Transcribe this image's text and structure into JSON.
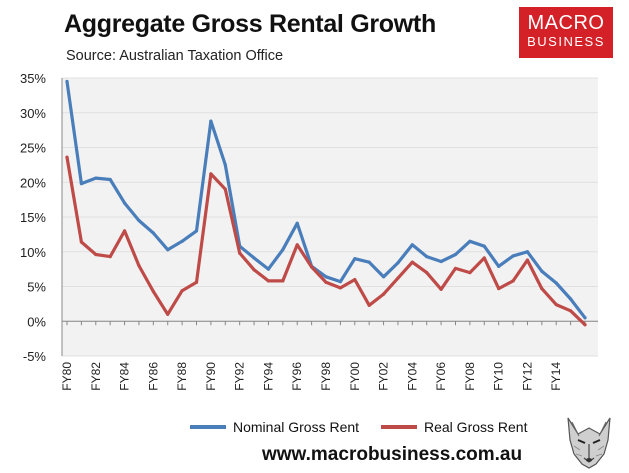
{
  "header": {
    "title": "Aggregate Gross Rental Growth",
    "subtitle": "Source: Australian Taxation Office"
  },
  "logo": {
    "line1": "MACRO",
    "line2": "BUSINESS",
    "color": "#d42027"
  },
  "footer": {
    "url": "www.macrobusiness.com.au",
    "mascot_icon": "wolf-icon"
  },
  "chart_data": {
    "type": "line",
    "title": "Aggregate Gross Rental Growth",
    "xlabel": "",
    "ylabel": "",
    "ylim": [
      -5,
      35
    ],
    "y_ticks": [
      -5,
      0,
      5,
      10,
      15,
      20,
      25,
      30,
      35
    ],
    "y_tick_labels": [
      "-5%",
      "0%",
      "5%",
      "10%",
      "15%",
      "20%",
      "25%",
      "30%",
      "35%"
    ],
    "x": [
      "FY80",
      "FY81",
      "FY82",
      "FY83",
      "FY84",
      "FY85",
      "FY86",
      "FY87",
      "FY88",
      "FY89",
      "FY90",
      "FY91",
      "FY92",
      "FY93",
      "FY94",
      "FY95",
      "FY96",
      "FY97",
      "FY98",
      "FY99",
      "FY00",
      "FY01",
      "FY02",
      "FY03",
      "FY04",
      "FY05",
      "FY06",
      "FY07",
      "FY08",
      "FY09",
      "FY10",
      "FY11",
      "FY12",
      "FY13",
      "FY14",
      "FY15",
      "FY16"
    ],
    "x_tick_labels": [
      "FY80",
      "",
      "FY82",
      "",
      "FY84",
      "",
      "FY86",
      "",
      "FY88",
      "",
      "FY90",
      "",
      "FY92",
      "",
      "FY94",
      "",
      "FY96",
      "",
      "FY98",
      "",
      "FY00",
      "",
      "FY02",
      "",
      "FY04",
      "",
      "FY06",
      "",
      "FY08",
      "",
      "FY10",
      "",
      "FY12",
      "",
      "FY14",
      "",
      ""
    ],
    "grid": true,
    "legend_position": "bottom",
    "series": [
      {
        "name": "Nominal Gross Rent",
        "color": "#4a7ebb",
        "values": [
          34.5,
          19.8,
          20.6,
          20.4,
          17.0,
          14.5,
          12.7,
          10.3,
          11.5,
          13.0,
          28.8,
          22.5,
          10.8,
          9.1,
          7.5,
          10.3,
          14.1,
          7.9,
          6.4,
          5.7,
          9.0,
          8.5,
          6.4,
          8.4,
          11.0,
          9.3,
          8.6,
          9.6,
          11.5,
          10.8,
          7.9,
          9.4,
          10.0,
          7.2,
          5.5,
          3.2,
          0.5
        ]
      },
      {
        "name": "Real Gross Rent",
        "color": "#be4b48",
        "values": [
          23.6,
          11.4,
          9.6,
          9.3,
          13.0,
          8.0,
          4.3,
          1.0,
          4.4,
          5.6,
          21.2,
          19.0,
          9.8,
          7.4,
          5.8,
          5.8,
          11.0,
          7.8,
          5.6,
          4.8,
          6.0,
          2.3,
          3.9,
          6.2,
          8.5,
          7.0,
          4.6,
          7.6,
          7.0,
          9.1,
          4.7,
          5.8,
          8.8,
          4.7,
          2.4,
          1.5,
          -0.5
        ]
      }
    ]
  }
}
